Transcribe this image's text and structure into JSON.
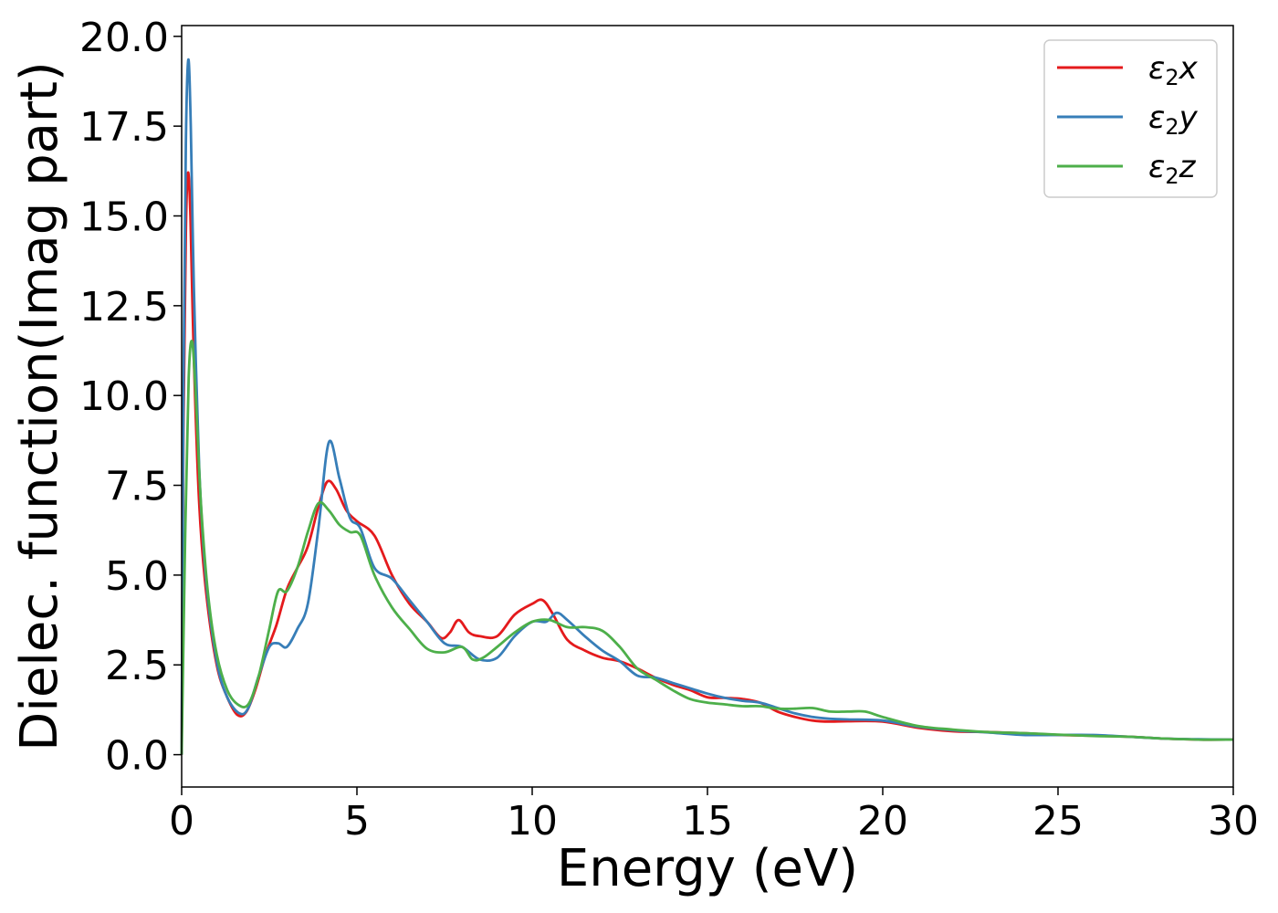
{
  "chart_data": {
    "type": "line",
    "title": "",
    "xlabel": "Energy (eV)",
    "ylabel": "Dielec. function(Imag part)",
    "xlim": [
      0,
      30
    ],
    "ylim": [
      -0.9,
      20.3
    ],
    "xticks": [
      0,
      5,
      10,
      15,
      20,
      25,
      30
    ],
    "xtick_labels": [
      "0",
      "5",
      "10",
      "15",
      "20",
      "25",
      "30"
    ],
    "yticks": [
      0.0,
      2.5,
      5.0,
      7.5,
      10.0,
      12.5,
      15.0,
      17.5,
      20.0
    ],
    "ytick_labels": [
      "0.0",
      "2.5",
      "5.0",
      "7.5",
      "10.0",
      "12.5",
      "15.0",
      "17.5",
      "20.0"
    ],
    "grid": false,
    "legend_position": "top-right",
    "series": [
      {
        "name": "ε2x",
        "legend": {
          "symbol": "ε",
          "sub": "2",
          "var": "x"
        },
        "color": "#e41a1c",
        "points": [
          [
            0,
            0
          ],
          [
            0.05,
            9
          ],
          [
            0.12,
            14.5
          ],
          [
            0.18,
            16.2
          ],
          [
            0.25,
            15
          ],
          [
            0.35,
            11
          ],
          [
            0.5,
            7
          ],
          [
            0.7,
            4.5
          ],
          [
            1.0,
            2.5
          ],
          [
            1.3,
            1.6
          ],
          [
            1.6,
            1.1
          ],
          [
            1.85,
            1.2
          ],
          [
            2.1,
            1.8
          ],
          [
            2.4,
            2.8
          ],
          [
            2.7,
            3.6
          ],
          [
            3.0,
            4.6
          ],
          [
            3.3,
            5.2
          ],
          [
            3.6,
            5.8
          ],
          [
            3.9,
            6.9
          ],
          [
            4.15,
            7.6
          ],
          [
            4.4,
            7.4
          ],
          [
            4.7,
            6.8
          ],
          [
            5.0,
            6.5
          ],
          [
            5.5,
            6.1
          ],
          [
            6.0,
            5.0
          ],
          [
            6.5,
            4.2
          ],
          [
            7.0,
            3.7
          ],
          [
            7.4,
            3.25
          ],
          [
            7.65,
            3.4
          ],
          [
            7.9,
            3.75
          ],
          [
            8.2,
            3.4
          ],
          [
            8.5,
            3.3
          ],
          [
            9.0,
            3.3
          ],
          [
            9.5,
            3.9
          ],
          [
            10.0,
            4.2
          ],
          [
            10.3,
            4.3
          ],
          [
            10.6,
            3.9
          ],
          [
            11.0,
            3.2
          ],
          [
            11.5,
            2.9
          ],
          [
            12.0,
            2.7
          ],
          [
            12.5,
            2.6
          ],
          [
            13.0,
            2.4
          ],
          [
            13.5,
            2.15
          ],
          [
            14.0,
            1.95
          ],
          [
            14.5,
            1.8
          ],
          [
            15.0,
            1.6
          ],
          [
            15.5,
            1.58
          ],
          [
            16.0,
            1.55
          ],
          [
            16.5,
            1.45
          ],
          [
            17.0,
            1.2
          ],
          [
            17.5,
            1.05
          ],
          [
            18.0,
            0.95
          ],
          [
            18.5,
            0.92
          ],
          [
            19.0,
            0.93
          ],
          [
            20.0,
            0.92
          ],
          [
            21.0,
            0.75
          ],
          [
            22.0,
            0.65
          ],
          [
            23.0,
            0.63
          ],
          [
            24.0,
            0.6
          ],
          [
            25.0,
            0.55
          ],
          [
            26.0,
            0.53
          ],
          [
            27.0,
            0.5
          ],
          [
            28.0,
            0.45
          ],
          [
            29.0,
            0.42
          ],
          [
            30.0,
            0.42
          ]
        ]
      },
      {
        "name": "ε2y",
        "legend": {
          "symbol": "ε",
          "sub": "2",
          "var": "y"
        },
        "color": "#377eb8",
        "points": [
          [
            0,
            0
          ],
          [
            0.05,
            10
          ],
          [
            0.12,
            17
          ],
          [
            0.19,
            19.35
          ],
          [
            0.26,
            17.5
          ],
          [
            0.35,
            13
          ],
          [
            0.5,
            8
          ],
          [
            0.7,
            4.8
          ],
          [
            1.0,
            2.6
          ],
          [
            1.3,
            1.6
          ],
          [
            1.65,
            1.15
          ],
          [
            1.9,
            1.3
          ],
          [
            2.2,
            2.2
          ],
          [
            2.5,
            3.0
          ],
          [
            2.75,
            3.1
          ],
          [
            3.0,
            3.0
          ],
          [
            3.3,
            3.5
          ],
          [
            3.6,
            4.2
          ],
          [
            3.9,
            6.3
          ],
          [
            4.2,
            8.7
          ],
          [
            4.5,
            7.7
          ],
          [
            4.8,
            6.6
          ],
          [
            5.1,
            6.3
          ],
          [
            5.5,
            5.2
          ],
          [
            6.0,
            4.9
          ],
          [
            6.5,
            4.3
          ],
          [
            7.0,
            3.7
          ],
          [
            7.5,
            3.1
          ],
          [
            8.0,
            3.0
          ],
          [
            8.5,
            2.65
          ],
          [
            9.0,
            2.7
          ],
          [
            9.5,
            3.3
          ],
          [
            10.0,
            3.7
          ],
          [
            10.4,
            3.7
          ],
          [
            10.7,
            3.95
          ],
          [
            11.0,
            3.75
          ],
          [
            11.5,
            3.3
          ],
          [
            12.0,
            2.9
          ],
          [
            12.5,
            2.6
          ],
          [
            13.0,
            2.2
          ],
          [
            13.5,
            2.15
          ],
          [
            14.0,
            2.0
          ],
          [
            14.5,
            1.85
          ],
          [
            15.0,
            1.7
          ],
          [
            15.5,
            1.58
          ],
          [
            16.0,
            1.5
          ],
          [
            16.5,
            1.45
          ],
          [
            17.0,
            1.3
          ],
          [
            17.5,
            1.15
          ],
          [
            18.0,
            1.05
          ],
          [
            18.5,
            1.0
          ],
          [
            19.0,
            0.98
          ],
          [
            20.0,
            0.95
          ],
          [
            21.0,
            0.78
          ],
          [
            22.0,
            0.68
          ],
          [
            23.0,
            0.62
          ],
          [
            24.0,
            0.55
          ],
          [
            25.0,
            0.55
          ],
          [
            26.0,
            0.55
          ],
          [
            27.0,
            0.5
          ],
          [
            28.0,
            0.45
          ],
          [
            29.0,
            0.43
          ],
          [
            30.0,
            0.42
          ]
        ]
      },
      {
        "name": "ε2z",
        "legend": {
          "symbol": "ε",
          "sub": "2",
          "var": "z"
        },
        "color": "#4daf4a",
        "points": [
          [
            0,
            0
          ],
          [
            0.1,
            6
          ],
          [
            0.2,
            10.5
          ],
          [
            0.3,
            11.5
          ],
          [
            0.4,
            10
          ],
          [
            0.55,
            7
          ],
          [
            0.75,
            4.5
          ],
          [
            1.0,
            2.8
          ],
          [
            1.3,
            1.8
          ],
          [
            1.6,
            1.4
          ],
          [
            1.9,
            1.4
          ],
          [
            2.2,
            2.2
          ],
          [
            2.5,
            3.5
          ],
          [
            2.75,
            4.55
          ],
          [
            3.0,
            4.55
          ],
          [
            3.3,
            5.2
          ],
          [
            3.6,
            6.2
          ],
          [
            3.9,
            7.0
          ],
          [
            4.2,
            6.8
          ],
          [
            4.5,
            6.4
          ],
          [
            4.8,
            6.2
          ],
          [
            5.1,
            6.1
          ],
          [
            5.5,
            5.0
          ],
          [
            6.0,
            4.1
          ],
          [
            6.5,
            3.5
          ],
          [
            7.0,
            2.95
          ],
          [
            7.5,
            2.85
          ],
          [
            8.0,
            3.0
          ],
          [
            8.3,
            2.65
          ],
          [
            8.6,
            2.7
          ],
          [
            9.0,
            3.0
          ],
          [
            9.5,
            3.4
          ],
          [
            10.0,
            3.7
          ],
          [
            10.5,
            3.75
          ],
          [
            11.0,
            3.55
          ],
          [
            11.5,
            3.55
          ],
          [
            12.0,
            3.45
          ],
          [
            12.5,
            3.0
          ],
          [
            13.0,
            2.4
          ],
          [
            13.5,
            2.1
          ],
          [
            14.0,
            1.8
          ],
          [
            14.5,
            1.55
          ],
          [
            15.0,
            1.45
          ],
          [
            15.5,
            1.4
          ],
          [
            16.0,
            1.35
          ],
          [
            16.5,
            1.35
          ],
          [
            17.0,
            1.28
          ],
          [
            17.5,
            1.28
          ],
          [
            18.0,
            1.3
          ],
          [
            18.5,
            1.2
          ],
          [
            19.0,
            1.2
          ],
          [
            19.5,
            1.2
          ],
          [
            20.0,
            1.05
          ],
          [
            21.0,
            0.8
          ],
          [
            22.0,
            0.7
          ],
          [
            23.0,
            0.63
          ],
          [
            24.0,
            0.6
          ],
          [
            25.0,
            0.56
          ],
          [
            26.0,
            0.52
          ],
          [
            27.0,
            0.5
          ],
          [
            28.0,
            0.45
          ],
          [
            29.0,
            0.42
          ],
          [
            30.0,
            0.42
          ]
        ]
      }
    ]
  }
}
